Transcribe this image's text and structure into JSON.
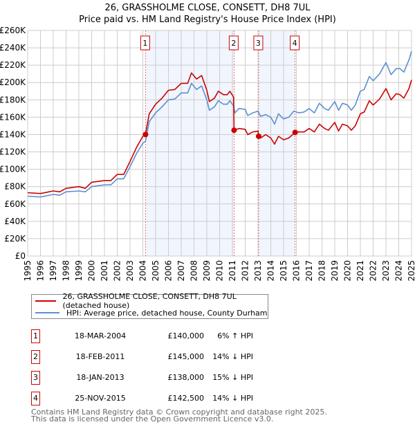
{
  "chart_data": {
    "type": "line",
    "title": "26, GRASSHOLME CLOSE, CONSETT, DH8 7UL",
    "subtitle": "Price paid vs. HM Land Registry's House Price Index (HPI)",
    "xlim": [
      1995,
      2025
    ],
    "ylim": [
      0,
      260000
    ],
    "y_ticks": [
      0,
      20000,
      40000,
      60000,
      80000,
      100000,
      120000,
      140000,
      160000,
      180000,
      200000,
      220000,
      240000,
      260000
    ],
    "y_tick_labels": [
      "£0",
      "£20K",
      "£40K",
      "£60K",
      "£80K",
      "£100K",
      "£120K",
      "£140K",
      "£160K",
      "£180K",
      "£200K",
      "£220K",
      "£240K",
      "£260K"
    ],
    "x_ticks": [
      "1995",
      "1996",
      "1997",
      "1998",
      "1999",
      "2000",
      "2001",
      "2002",
      "2003",
      "2004",
      "2005",
      "2006",
      "2007",
      "2008",
      "2009",
      "2010",
      "2011",
      "2012",
      "2013",
      "2014",
      "2015",
      "2016",
      "2017",
      "2018",
      "2019",
      "2020",
      "2021",
      "2022",
      "2023",
      "2024",
      "2025"
    ],
    "grid": true,
    "series": [
      {
        "name": "26, GRASSHOLME CLOSE, CONSETT, DH8 7UL (detached house)",
        "color": "#cc0000",
        "x": [
          1995,
          1996,
          1997,
          1997.5,
          1998,
          1999,
          1999.5,
          2000,
          2001,
          2001.5,
          2002,
          2002.5,
          2003,
          2003.5,
          2004,
          2004.2,
          2004.5,
          2005,
          2005.5,
          2006,
          2006.5,
          2007,
          2007.5,
          2007.8,
          2008.2,
          2008.6,
          2009,
          2009.2,
          2009.6,
          2009.9,
          2010.3,
          2010.6,
          2010.8,
          2011.1,
          2011.13,
          2011.5,
          2012,
          2012.2,
          2012.6,
          2013,
          2013.05,
          2013.2,
          2013.6,
          2014,
          2014.3,
          2014.6,
          2015,
          2015.4,
          2015.9,
          2016.2,
          2016.6,
          2017,
          2017.4,
          2017.8,
          2018.2,
          2018.5,
          2019,
          2019.3,
          2019.6,
          2020,
          2020.3,
          2020.6,
          2021,
          2021.3,
          2021.7,
          2022,
          2022.5,
          2023,
          2023.4,
          2023.8,
          2024.1,
          2024.4,
          2024.8,
          2025
        ],
        "y": [
          73,
          72,
          75,
          74,
          78,
          80,
          78,
          85,
          87,
          87,
          94,
          94,
          109,
          125,
          138,
          140,
          164,
          175,
          182,
          191,
          192,
          199,
          199,
          211,
          204,
          208,
          191,
          178,
          182,
          190,
          186,
          186,
          190,
          183,
          145,
          147,
          146,
          140,
          143,
          144,
          138,
          136,
          140,
          136,
          129,
          138,
          134,
          136,
          142.5,
          143,
          143,
          147,
          143,
          152,
          147,
          145,
          154,
          144,
          152,
          150,
          145,
          150,
          164,
          166,
          179,
          174,
          181,
          193,
          180,
          187,
          186,
          182,
          193,
          203
        ]
      },
      {
        "name": "HPI: Average price, detached house, County Durham",
        "color": "#5b8fd0",
        "x": [
          1995,
          1996,
          1997,
          1997.5,
          1998,
          1999,
          1999.5,
          2000,
          2001,
          2001.5,
          2002,
          2002.5,
          2003,
          2003.5,
          2004,
          2004.2,
          2004.5,
          2005,
          2005.5,
          2006,
          2006.5,
          2007,
          2007.5,
          2007.8,
          2008.2,
          2008.6,
          2009,
          2009.2,
          2009.6,
          2009.9,
          2010.3,
          2010.6,
          2010.8,
          2011.1,
          2011.2,
          2011.5,
          2012,
          2012.2,
          2012.6,
          2013,
          2013.2,
          2013.6,
          2014,
          2014.3,
          2014.6,
          2015,
          2015.4,
          2015.8,
          2016.2,
          2016.6,
          2017,
          2017.4,
          2017.8,
          2018.2,
          2018.5,
          2019,
          2019.3,
          2019.6,
          2020,
          2020.3,
          2020.6,
          2021,
          2021.3,
          2021.7,
          2022,
          2022.5,
          2023,
          2023.4,
          2023.8,
          2024.1,
          2024.4,
          2024.8,
          2025
        ],
        "y": [
          69,
          68,
          71,
          70,
          74,
          75,
          74,
          80,
          82,
          82,
          89,
          89,
          103,
          118,
          130,
          132,
          155,
          165,
          172,
          180,
          181,
          188,
          188,
          199,
          192,
          196,
          180,
          168,
          172,
          179,
          175,
          175,
          179,
          173,
          165,
          170,
          169,
          162,
          165,
          167,
          161,
          163,
          160,
          152,
          164,
          158,
          160,
          167,
          165,
          166,
          170,
          165,
          176,
          170,
          168,
          178,
          168,
          176,
          174,
          168,
          174,
          190,
          192,
          207,
          202,
          210,
          223,
          209,
          216,
          216,
          212,
          226,
          236
        ]
      }
    ],
    "y_units": "thousands GBP",
    "sales": [
      {
        "n": "1",
        "x": 2004.21,
        "y": 140,
        "date": "18-MAR-2004",
        "price": "£140,000",
        "hpi": "6% ↑ HPI"
      },
      {
        "n": "2",
        "x": 2011.13,
        "y": 145,
        "date": "18-FEB-2011",
        "price": "£145,000",
        "hpi": "14% ↓ HPI"
      },
      {
        "n": "3",
        "x": 2013.05,
        "y": 138,
        "date": "18-JAN-2013",
        "price": "£138,000",
        "hpi": "15% ↓ HPI"
      },
      {
        "n": "4",
        "x": 2015.9,
        "y": 142.5,
        "date": "25-NOV-2015",
        "price": "£142,500",
        "hpi": "14% ↓ HPI"
      }
    ],
    "shaded": [
      [
        2004.21,
        2011.13
      ],
      [
        2013.05,
        2015.9
      ]
    ],
    "legend_position": "below"
  },
  "footer": {
    "line1": "Contains HM Land Registry data © Crown copyright and database right 2025.",
    "line2": "This data is licensed under the Open Government Licence v3.0."
  }
}
